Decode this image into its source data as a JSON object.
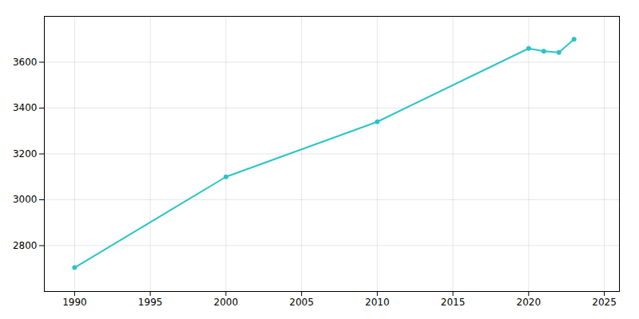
{
  "chart_data": {
    "type": "line",
    "x": [
      1990,
      2000,
      2010,
      2020,
      2021,
      2022,
      2023
    ],
    "values": [
      2704,
      3100,
      3340,
      3660,
      3648,
      3643,
      3700
    ],
    "color": "#2BC4C4",
    "marker": "circle",
    "xlim": [
      1988,
      2026
    ],
    "ylim": [
      2600,
      3800
    ],
    "xticks": [
      1990,
      1995,
      2000,
      2005,
      2010,
      2015,
      2020,
      2025
    ],
    "yticks": [
      2800,
      3000,
      3200,
      3400,
      3600
    ],
    "grid": true
  }
}
